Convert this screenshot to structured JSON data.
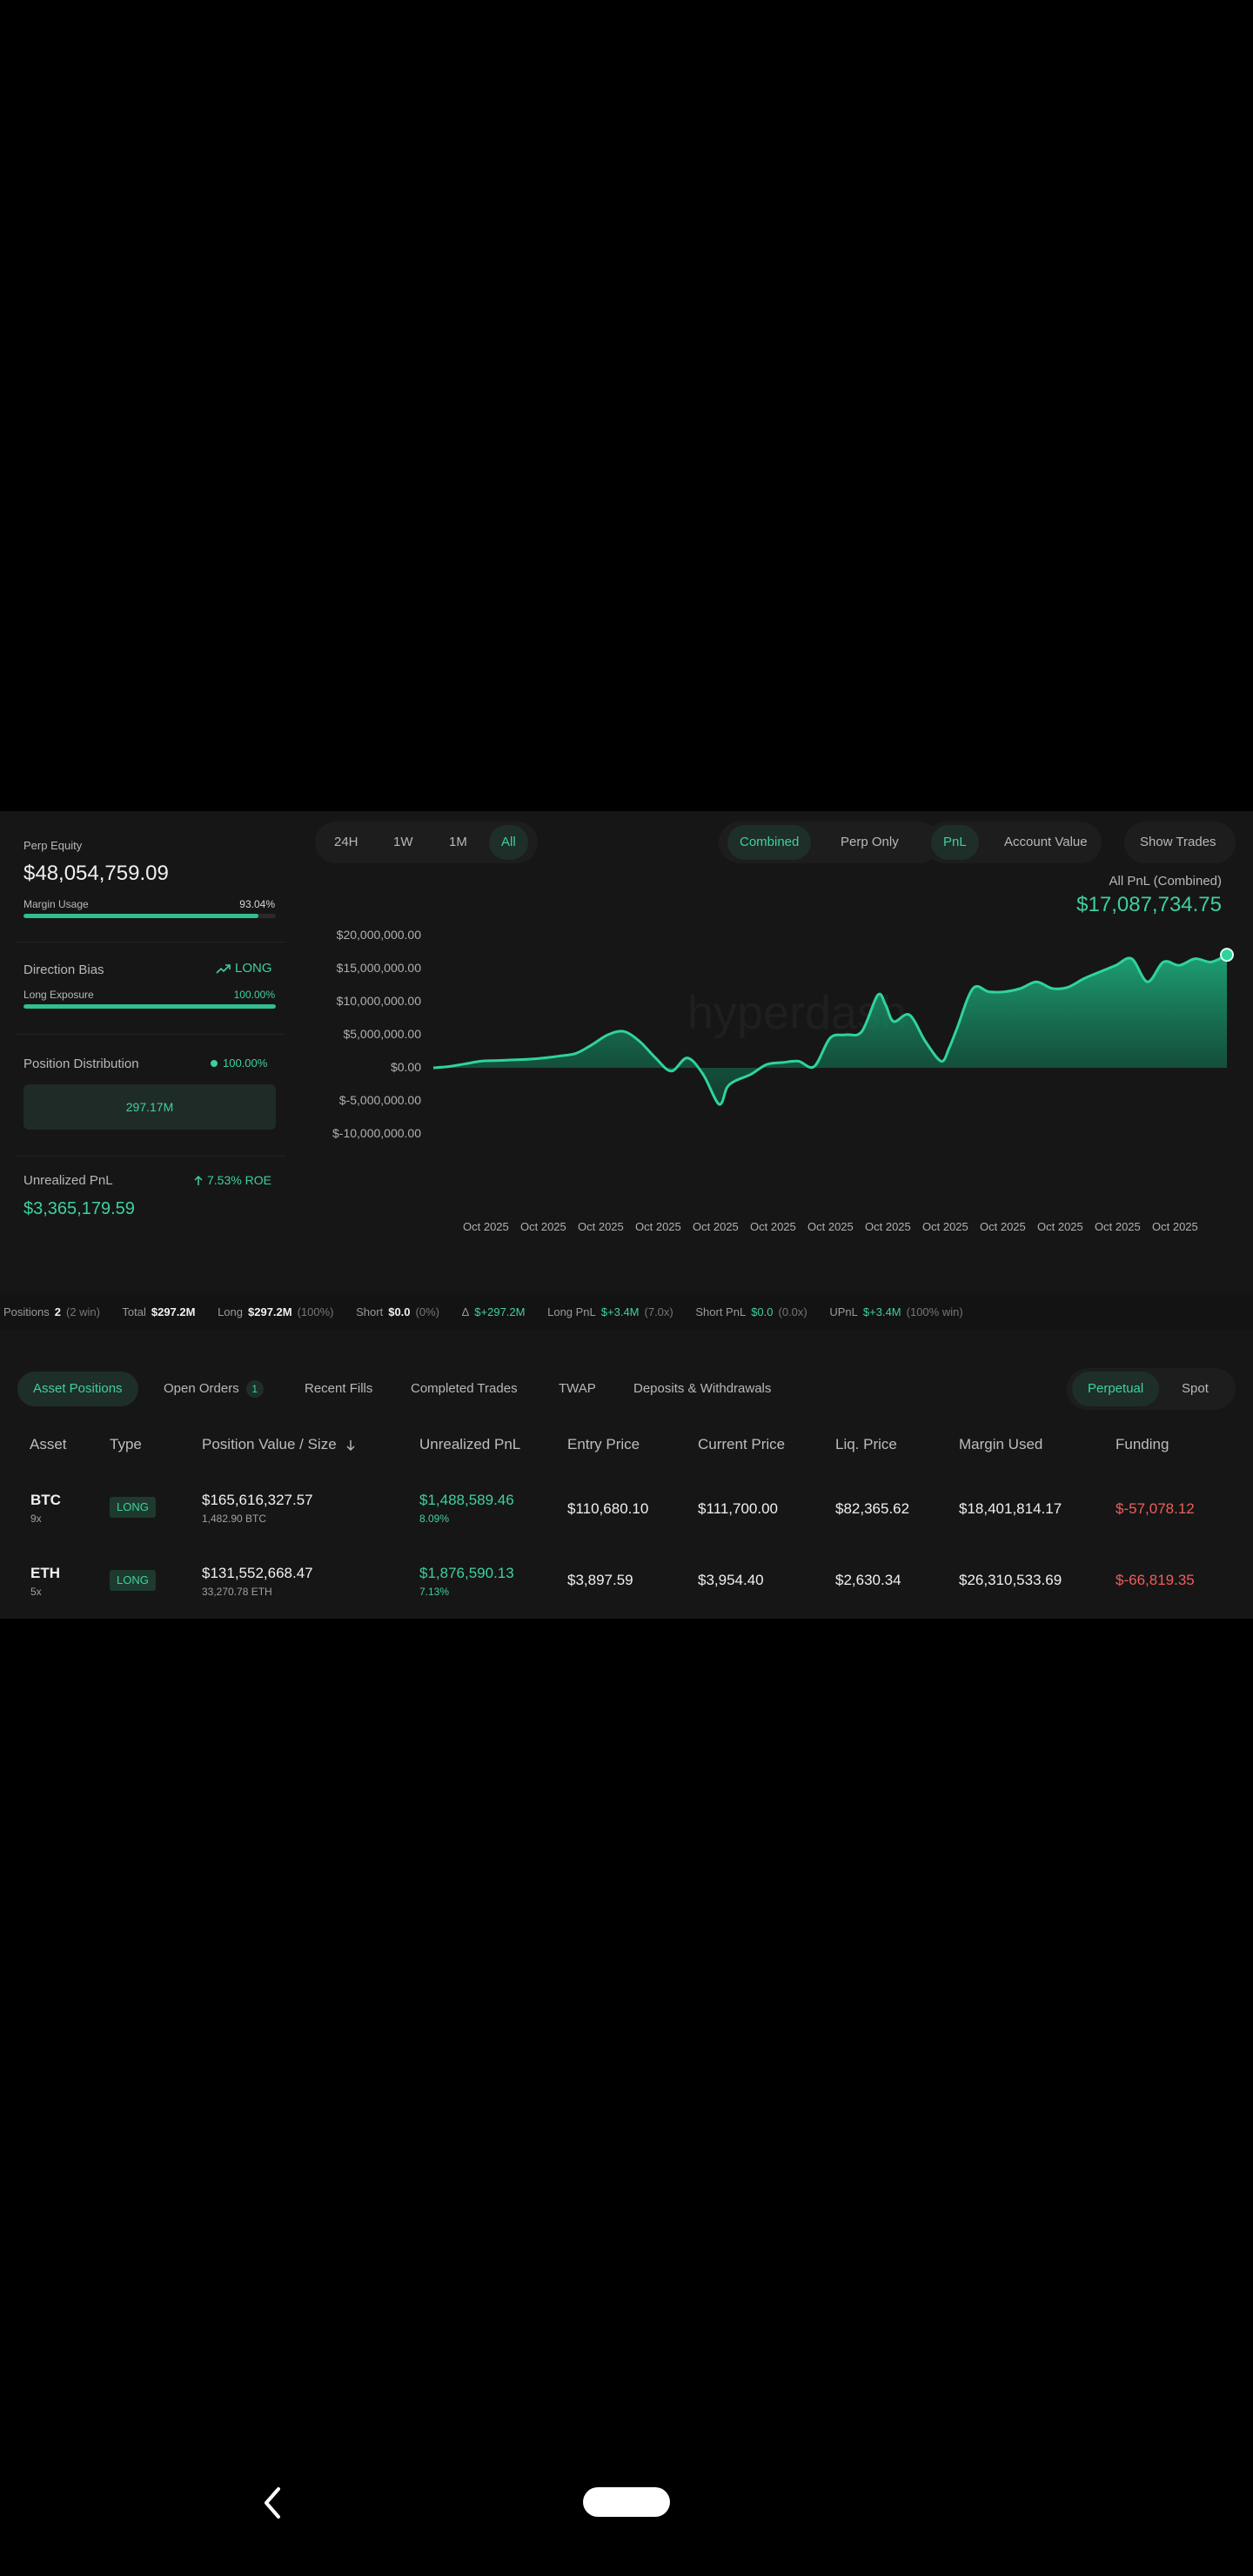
{
  "left": {
    "perp_equity_label": "Perp Equity",
    "perp_equity_value": "$48,054,759.09",
    "margin_usage_label": "Margin Usage",
    "margin_usage_value": "93.04%",
    "margin_usage_fraction": 0.93,
    "direction_bias_label": "Direction Bias",
    "direction_bias_value": "LONG",
    "long_exposure_label": "Long Exposure",
    "long_exposure_value": "100.00%",
    "long_exposure_fraction": 1.0,
    "position_distribution_label": "Position Distribution",
    "position_distribution_value": "100.00%",
    "distribution_box_value": "297.17M",
    "unrealized_pnl_label": "Unrealized PnL",
    "roe_value": "7.53% ROE",
    "unrealized_pnl_value": "$3,365,179.59"
  },
  "controls": {
    "timeframes": [
      "24H",
      "1W",
      "1M",
      "All"
    ],
    "active_timeframe": "All",
    "combined_label": "Combined",
    "perp_only_label": "Perp Only",
    "pnl_label": "PnL",
    "account_value_label": "Account Value",
    "show_trades_label": "Show Trades"
  },
  "chart_header": {
    "label": "All PnL (Combined)",
    "value": "$17,087,734.75",
    "watermark": "hyperdash"
  },
  "chart_data": {
    "type": "area",
    "title": "All PnL (Combined)",
    "y_ticks": [
      "$20,000,000.00",
      "$15,000,000.00",
      "$10,000,000.00",
      "$5,000,000.00",
      "$0.00",
      "$-5,000,000.00",
      "$-10,000,000.00"
    ],
    "ylim": [
      -10000000,
      20000000
    ],
    "x_ticks": [
      "Oct 2025",
      "Oct 2025",
      "Oct 2025",
      "Oct 2025",
      "Oct 2025",
      "Oct 2025",
      "Oct 2025",
      "Oct 2025",
      "Oct 2025",
      "Oct 2025",
      "Oct 2025",
      "Oct 2025",
      "Oct 2025"
    ],
    "x_index": [
      0,
      2,
      4,
      6,
      8,
      10,
      12,
      14,
      16,
      18,
      20,
      22,
      24,
      26,
      28,
      30,
      32,
      34,
      36,
      37,
      38,
      40,
      42,
      44,
      46,
      48,
      50,
      52,
      54,
      56,
      57,
      58,
      60,
      62,
      64,
      65,
      66,
      68,
      70,
      72,
      74,
      76,
      78,
      80,
      82,
      84,
      86,
      88,
      90,
      92,
      94,
      96,
      98,
      100
    ],
    "values": [
      0,
      200000,
      600000,
      1000000,
      1100000,
      1200000,
      1300000,
      1500000,
      1800000,
      2200000,
      3500000,
      5000000,
      5500000,
      4000000,
      1500000,
      -500000,
      1500000,
      -1000000,
      -5500000,
      -3000000,
      -2000000,
      -1000000,
      500000,
      800000,
      1000000,
      200000,
      4500000,
      5000000,
      5500000,
      11000000,
      9500000,
      7000000,
      8000000,
      4000000,
      1000000,
      3000000,
      6000000,
      12000000,
      11500000,
      11500000,
      12000000,
      13000000,
      12000000,
      12200000,
      13500000,
      14500000,
      15500000,
      16500000,
      13000000,
      16000000,
      15500000,
      16500000,
      16000000,
      17087734.75
    ],
    "series": [
      {
        "values": []
      }
    ],
    "grid": false,
    "legend": "none"
  },
  "strip": {
    "positions_label": "Positions",
    "positions_count": "2",
    "positions_win": "(2 win)",
    "total_label": "Total",
    "total_value": "$297.2M",
    "long_label": "Long",
    "long_value": "$297.2M",
    "long_pct": "(100%)",
    "short_label": "Short",
    "short_value": "$0.0",
    "short_pct": "(0%)",
    "delta_label": "Δ",
    "delta_value": "$+297.2M",
    "long_pnl_label": "Long PnL",
    "long_pnl_value": "$+3.4M",
    "long_pnl_x": "(7.0x)",
    "short_pnl_label": "Short PnL",
    "short_pnl_value": "$0.0",
    "short_pnl_x": "(0.0x)",
    "upnl_label": "UPnL",
    "upnl_value": "$+3.4M",
    "upnl_win": "(100% win)"
  },
  "tabs": {
    "asset_positions": "Asset Positions",
    "open_orders": "Open Orders",
    "open_orders_count": "1",
    "recent_fills": "Recent Fills",
    "completed_trades": "Completed Trades",
    "twap": "TWAP",
    "deposits": "Deposits & Withdrawals",
    "perpetual": "Perpetual",
    "spot": "Spot"
  },
  "table": {
    "headers": {
      "asset": "Asset",
      "type": "Type",
      "position_value": "Position Value / Size",
      "unrealized_pnl": "Unrealized PnL",
      "entry_price": "Entry Price",
      "current_price": "Current Price",
      "liq_price": "Liq. Price",
      "margin_used": "Margin Used",
      "funding": "Funding"
    },
    "rows": [
      {
        "asset": "BTC",
        "leverage": "9x",
        "type": "LONG",
        "value": "$165,616,327.57",
        "size": "1,482.90 BTC",
        "pnl": "$1,488,589.46",
        "pnl_pct": "8.09%",
        "entry": "$110,680.10",
        "current": "$111,700.00",
        "liq": "$82,365.62",
        "margin": "$18,401,814.17",
        "funding": "$-57,078.12"
      },
      {
        "asset": "ETH",
        "leverage": "5x",
        "type": "LONG",
        "value": "$131,552,668.47",
        "size": "33,270.78 ETH",
        "pnl": "$1,876,590.13",
        "pnl_pct": "7.13%",
        "entry": "$3,897.59",
        "current": "$3,954.40",
        "liq": "$2,630.34",
        "margin": "$26,310,533.69",
        "funding": "$-66,819.35"
      }
    ]
  },
  "icons": {
    "trend": "trending-up-icon",
    "arrow_up": "arrow-up-icon",
    "sort": "sort-down-icon",
    "back": "back-chevron-icon"
  }
}
